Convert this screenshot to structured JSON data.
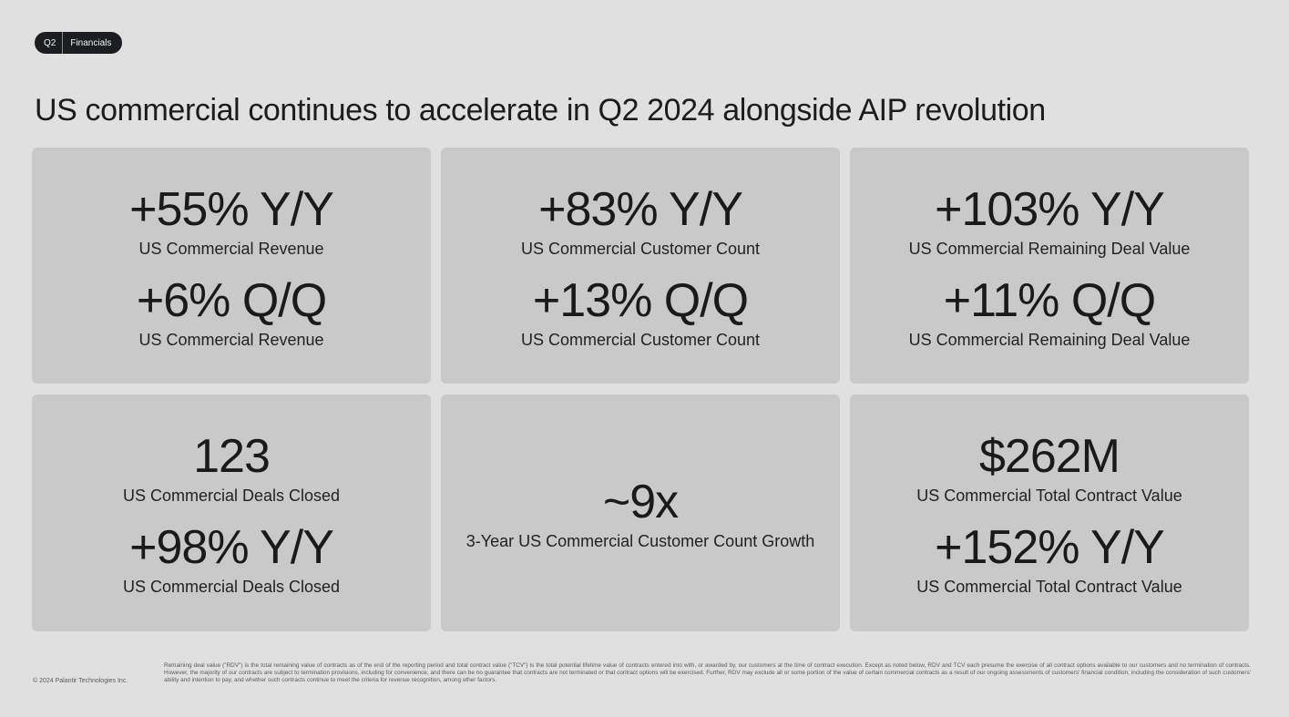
{
  "badge": {
    "quarter": "Q2",
    "section": "Financials"
  },
  "title": "US commercial continues to accelerate in Q2 2024 alongside AIP revolution",
  "cards": [
    {
      "metrics": [
        {
          "value": "+55% Y/Y",
          "label": "US Commercial Revenue"
        },
        {
          "value": "+6% Q/Q",
          "label": "US Commercial Revenue"
        }
      ]
    },
    {
      "metrics": [
        {
          "value": "+83% Y/Y",
          "label": "US Commercial Customer Count"
        },
        {
          "value": "+13% Q/Q",
          "label": "US Commercial Customer Count"
        }
      ]
    },
    {
      "metrics": [
        {
          "value": "+103% Y/Y",
          "label": "US Commercial Remaining Deal Value"
        },
        {
          "value": "+11% Q/Q",
          "label": "US Commercial Remaining Deal Value"
        }
      ]
    },
    {
      "metrics": [
        {
          "value": "123",
          "label": "US Commercial Deals Closed"
        },
        {
          "value": "+98% Y/Y",
          "label": "US Commercial Deals Closed"
        }
      ]
    },
    {
      "metrics": [
        {
          "value": "~9x",
          "label": "3-Year US Commercial Customer Count Growth"
        }
      ]
    },
    {
      "metrics": [
        {
          "value": "$262M",
          "label": "US Commercial Total Contract Value"
        },
        {
          "value": "+152% Y/Y",
          "label": "US Commercial Total Contract Value"
        }
      ]
    }
  ],
  "footer": {
    "copyright": "© 2024 Palantir Technologies Inc.",
    "footnote": "Remaining deal value (\"RDV\") is the total remaining value of contracts as of the end of the reporting period and total contract value (\"TCV\") is the total potential lifetime value of contracts entered into with, or awarded by, our customers at the time of contract execution. Except as noted below, RDV and TCV each presume the exercise of all contract options available to our customers and no termination of contracts. However, the majority of our contracts are subject to termination provisions, including for convenience, and there can be no guarantee that contracts are not terminated or that contract options will be exercised. Further, RDV may exclude all or some portion of the value of certain commercial contracts as a result of our ongoing assessments of customers' financial condition, including the consideration of such customers' ability and intention to pay, and whether such contracts continue to meet the criteria for revenue recognition, among other factors."
  }
}
